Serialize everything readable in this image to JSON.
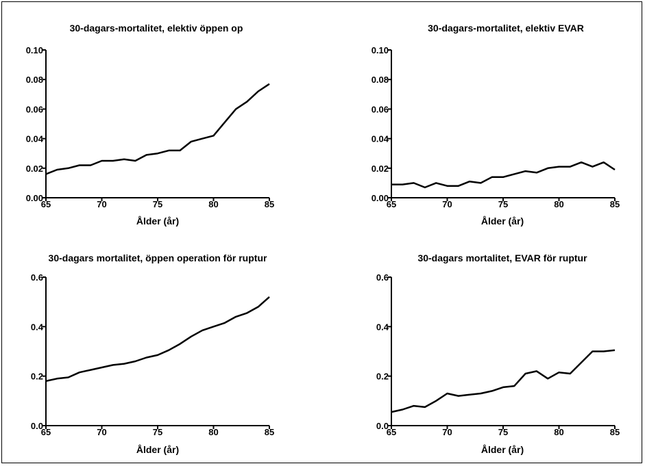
{
  "chart_data": [
    {
      "type": "line",
      "title": "30-dagars-mortalitet, elektiv öppen op",
      "xlabel": "Ålder (år)",
      "ylabel": "",
      "xlim": [
        65,
        85
      ],
      "ylim": [
        0,
        0.1
      ],
      "xticks": [
        "65",
        "70",
        "75",
        "80",
        "85"
      ],
      "yticks": [
        "0.00",
        "0.02",
        "0.04",
        "0.06",
        "0.08",
        "0.10"
      ],
      "x": [
        65,
        66,
        67,
        68,
        69,
        70,
        71,
        72,
        73,
        74,
        75,
        76,
        77,
        78,
        79,
        80,
        81,
        82,
        83,
        84,
        85
      ],
      "y": [
        0.016,
        0.019,
        0.02,
        0.022,
        0.022,
        0.025,
        0.025,
        0.026,
        0.025,
        0.029,
        0.03,
        0.032,
        0.032,
        0.038,
        0.04,
        0.042,
        0.051,
        0.06,
        0.065,
        0.072,
        0.077
      ]
    },
    {
      "type": "line",
      "title": "30-dagars-mortalitet, elektiv EVAR",
      "xlabel": "Ålder (år)",
      "ylabel": "",
      "xlim": [
        65,
        85
      ],
      "ylim": [
        0,
        0.1
      ],
      "xticks": [
        "65",
        "70",
        "75",
        "80",
        "85"
      ],
      "yticks": [
        "0.00",
        "0.02",
        "0.04",
        "0.06",
        "0.08",
        "0.10"
      ],
      "x": [
        65,
        66,
        67,
        68,
        69,
        70,
        71,
        72,
        73,
        74,
        75,
        76,
        77,
        78,
        79,
        80,
        81,
        82,
        83,
        84,
        85
      ],
      "y": [
        0.009,
        0.009,
        0.01,
        0.007,
        0.01,
        0.008,
        0.008,
        0.011,
        0.01,
        0.014,
        0.014,
        0.016,
        0.018,
        0.017,
        0.02,
        0.021,
        0.021,
        0.024,
        0.021,
        0.024,
        0.019
      ]
    },
    {
      "type": "line",
      "title": "30-dagars mortalitet, öppen operation för ruptur",
      "xlabel": "Ålder (år)",
      "ylabel": "",
      "xlim": [
        65,
        85
      ],
      "ylim": [
        0,
        0.6
      ],
      "xticks": [
        "65",
        "70",
        "75",
        "80",
        "85"
      ],
      "yticks": [
        "0.0",
        "0.2",
        "0.4",
        "0.6"
      ],
      "x": [
        65,
        66,
        67,
        68,
        69,
        70,
        71,
        72,
        73,
        74,
        75,
        76,
        77,
        78,
        79,
        80,
        81,
        82,
        83,
        84,
        85
      ],
      "y": [
        0.18,
        0.19,
        0.195,
        0.215,
        0.225,
        0.235,
        0.245,
        0.25,
        0.26,
        0.275,
        0.285,
        0.305,
        0.33,
        0.36,
        0.385,
        0.4,
        0.415,
        0.44,
        0.455,
        0.48,
        0.52
      ]
    },
    {
      "type": "line",
      "title": "30-dagars mortalitet, EVAR för ruptur",
      "xlabel": "Ålder (år)",
      "ylabel": "",
      "xlim": [
        65,
        85
      ],
      "ylim": [
        0,
        0.6
      ],
      "xticks": [
        "65",
        "70",
        "75",
        "80",
        "85"
      ],
      "yticks": [
        "0.0",
        "0.2",
        "0.4",
        "0.6"
      ],
      "x": [
        65,
        66,
        67,
        68,
        69,
        70,
        71,
        72,
        73,
        74,
        75,
        76,
        77,
        78,
        79,
        80,
        81,
        82,
        83,
        84,
        85
      ],
      "y": [
        0.055,
        0.065,
        0.08,
        0.075,
        0.1,
        0.13,
        0.12,
        0.125,
        0.13,
        0.14,
        0.155,
        0.16,
        0.21,
        0.22,
        0.19,
        0.215,
        0.21,
        0.255,
        0.3,
        0.3,
        0.305
      ]
    }
  ]
}
